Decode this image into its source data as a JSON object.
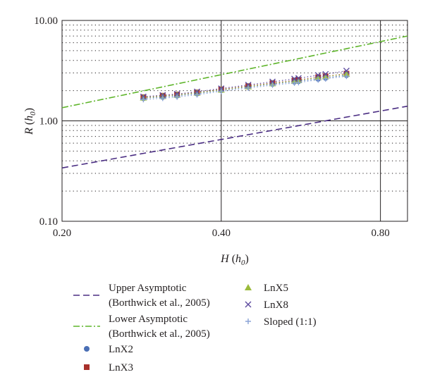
{
  "chart_data": {
    "type": "scatter",
    "xscale": "log",
    "yscale": "log",
    "xlim": [
      0.2,
      0.9
    ],
    "ylim": [
      0.1,
      10
    ],
    "xticks": [
      "0.20",
      "0.40",
      "0.80"
    ],
    "yticks": [
      "10.00",
      "1.00",
      "0.10"
    ],
    "xlabel": {
      "main": "H",
      "sub": "0"
    },
    "ylabel": {
      "main": "R",
      "sub": "0"
    },
    "grid": "major solid lines, minor dotted lines",
    "legend_position": "bottom",
    "series": [
      {
        "name": "Upper Asymptotic",
        "name_line2": "(Borthwick et al., 2005)",
        "kind": "line",
        "style": "dashed",
        "color": "#4b2e83",
        "x": [
          0.2,
          0.9
        ],
        "y": [
          0.34,
          1.4
        ]
      },
      {
        "name": "Lower Asymptotic",
        "name_line2": "(Borthwick et al., 2005)",
        "kind": "line",
        "style": "dashdot",
        "color": "#5fb52b",
        "x": [
          0.2,
          0.9
        ],
        "y": [
          1.35,
          7.0
        ]
      },
      {
        "name": "LnX2",
        "kind": "marker",
        "marker": "circle",
        "color": "#4a6fb5",
        "x": [
          0.285,
          0.31,
          0.33,
          0.36,
          0.4,
          0.45,
          0.5,
          0.55,
          0.56,
          0.61,
          0.63,
          0.69
        ],
        "y": [
          1.68,
          1.73,
          1.78,
          1.87,
          2.02,
          2.18,
          2.33,
          2.45,
          2.48,
          2.62,
          2.68,
          2.85
        ]
      },
      {
        "name": "LnX3",
        "kind": "marker",
        "marker": "square",
        "color": "#a8312b",
        "x": [
          0.285,
          0.31,
          0.33,
          0.36,
          0.4,
          0.45,
          0.5,
          0.55,
          0.56,
          0.61,
          0.63,
          0.69
        ],
        "y": [
          1.72,
          1.78,
          1.83,
          1.92,
          2.06,
          2.22,
          2.38,
          2.52,
          2.56,
          2.72,
          2.78,
          2.95
        ]
      },
      {
        "name": "LnX5",
        "kind": "marker",
        "marker": "triangle",
        "color": "#9bbb3b",
        "x": [
          0.285,
          0.31,
          0.33,
          0.36,
          0.4,
          0.45,
          0.5,
          0.55,
          0.56,
          0.61,
          0.63,
          0.69
        ],
        "y": [
          1.7,
          1.76,
          1.81,
          1.9,
          2.04,
          2.2,
          2.36,
          2.5,
          2.53,
          2.7,
          2.76,
          2.92
        ]
      },
      {
        "name": "LnX8",
        "kind": "marker",
        "marker": "x",
        "color": "#5d4a9e",
        "x": [
          0.285,
          0.31,
          0.33,
          0.36,
          0.4,
          0.45,
          0.5,
          0.55,
          0.56,
          0.61,
          0.63,
          0.69
        ],
        "y": [
          1.74,
          1.8,
          1.85,
          1.95,
          2.1,
          2.28,
          2.45,
          2.62,
          2.66,
          2.85,
          2.92,
          3.15
        ]
      },
      {
        "name": "Sloped (1:1)",
        "kind": "marker",
        "marker": "plus",
        "color": "#8aa3d6",
        "x": [
          0.285,
          0.31,
          0.33,
          0.36,
          0.4,
          0.45,
          0.5,
          0.55,
          0.56,
          0.61,
          0.63,
          0.69
        ],
        "y": [
          1.63,
          1.68,
          1.73,
          1.82,
          1.97,
          2.12,
          2.27,
          2.38,
          2.41,
          2.56,
          2.62,
          2.78
        ]
      }
    ]
  }
}
